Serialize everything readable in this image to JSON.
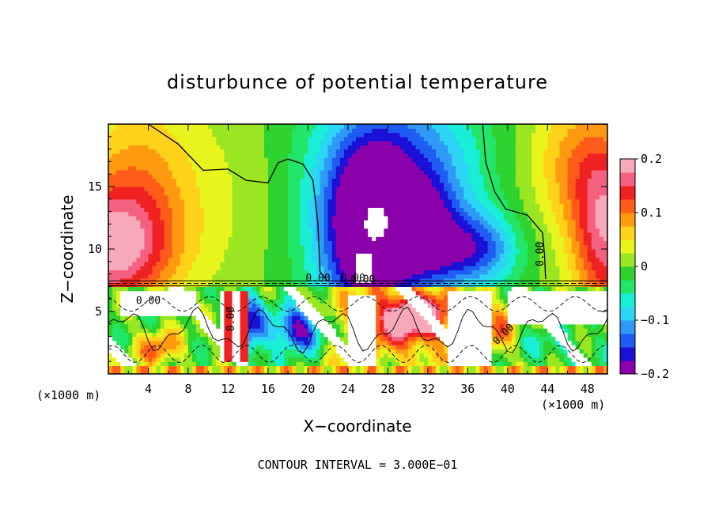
{
  "chart_data": {
    "type": "heatmap",
    "title": "disturbunce of potential temperature",
    "xlabel": "X−coordinate",
    "ylabel": "Z−coordinate",
    "x_unit_left": "(×1000 m)",
    "x_unit_right": "(×1000 m)",
    "xlim": [
      0,
      50
    ],
    "ylim": [
      0,
      20
    ],
    "x_ticks": [
      4,
      8,
      12,
      16,
      20,
      24,
      28,
      32,
      36,
      40,
      44,
      48
    ],
    "x_tick_labels": [
      "4",
      "8",
      "12",
      "16",
      "20",
      "24",
      "28",
      "32",
      "36",
      "40",
      "44",
      "48"
    ],
    "y_ticks": [
      5,
      10,
      15
    ],
    "y_tick_labels": [
      "5",
      "10",
      "15"
    ],
    "colorbar": {
      "min": -0.2,
      "max": 0.2,
      "ticks": [
        0.2,
        0.1,
        0,
        -0.1,
        -0.2
      ],
      "tick_labels": [
        "0.2",
        "0.1",
        "0",
        "−0.1",
        "−0.2"
      ],
      "colors": [
        "#8b00aa",
        "#1a10d6",
        "#1e5cf2",
        "#2f9af5",
        "#2cd5f5",
        "#19eed7",
        "#21e66a",
        "#2fd32f",
        "#9be622",
        "#e7f51c",
        "#ffd21a",
        "#ff9a10",
        "#ff5c1a",
        "#f02121",
        "#f56080",
        "#f8a9b9"
      ]
    },
    "contour_labels": [
      "0.00",
      "0.00",
      "0.00",
      "0.00",
      "0.00",
      "0.00",
      "0.00"
    ],
    "contour_interval_text": "CONTOUR INTERVAL = 3.000E−01",
    "grid": false,
    "legend": "colorbar right"
  }
}
